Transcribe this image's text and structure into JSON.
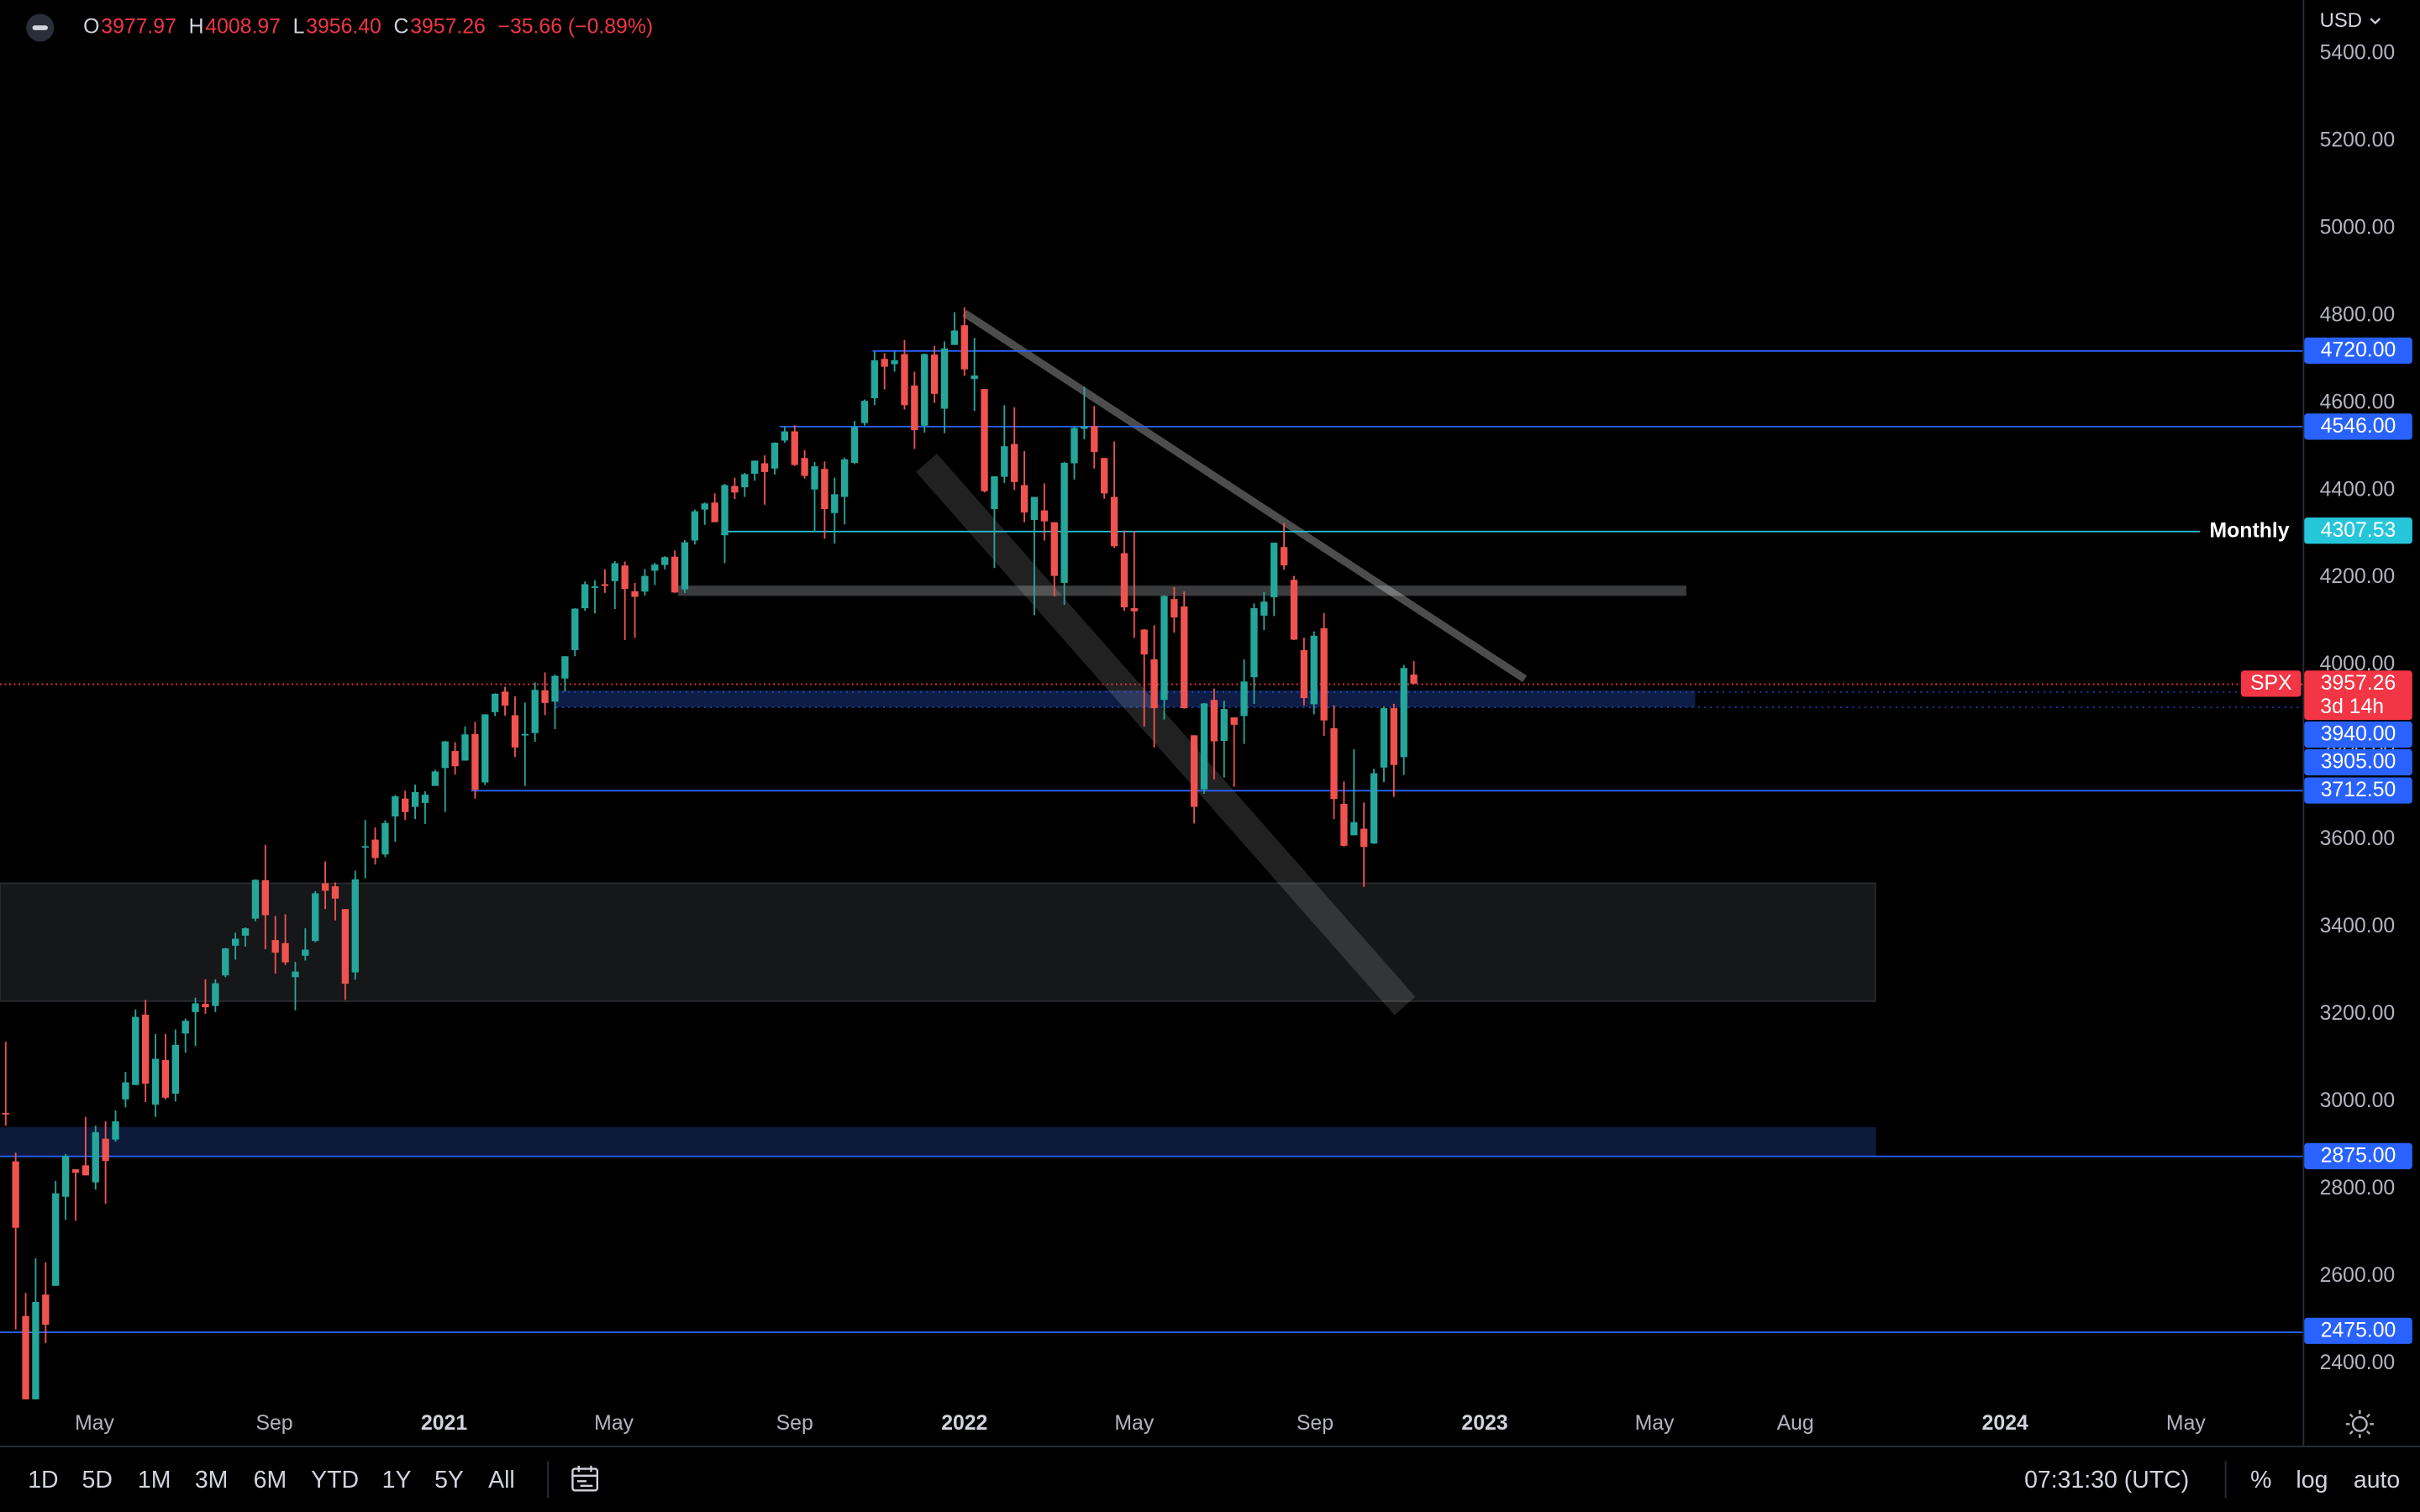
{
  "header": {
    "ohlc": [
      {
        "label": "O",
        "value": "3977.97"
      },
      {
        "label": "H",
        "value": "4008.97"
      },
      {
        "label": "L",
        "value": "3956.40"
      },
      {
        "label": "C",
        "value": "3957.26"
      }
    ],
    "change": "−35.66 (−0.89%)"
  },
  "currency": "USD",
  "toolbar": {
    "ranges": [
      "1D",
      "5D",
      "1M",
      "3M",
      "6M",
      "YTD",
      "1Y",
      "5Y",
      "All"
    ],
    "clock": "07:31:30 (UTC)",
    "options": [
      "%",
      "log",
      "auto"
    ]
  },
  "chart_data": {
    "type": "candlestick",
    "up_color": "#26a69a",
    "down_color": "#ef5350",
    "open": [
      2974,
      2863,
      2509,
      2291,
      2558,
      2578,
      2782,
      2845,
      2854,
      2815,
      2915,
      2913,
      3005,
      3038,
      3199,
      2993,
      3095,
      3018,
      3156,
      3205,
      3224,
      3219,
      3289,
      3357,
      3380,
      3419,
      3507,
      3370,
      3363,
      3285,
      3334,
      3368,
      3500,
      3493,
      3441,
      3296,
      3584,
      3600,
      3566,
      3653,
      3694,
      3675,
      3684,
      3723,
      3764,
      3803,
      3781,
      3842,
      3731,
      3892,
      3939,
      3885,
      3842,
      3844,
      3942,
      3916,
      3969,
      4034,
      4130,
      4179,
      4185,
      4192,
      4228,
      4169,
      4168,
      4216,
      4229,
      4248,
      4173,
      4285,
      4356,
      4372,
      4297,
      4410,
      4407,
      4438,
      4462,
      4450,
      4514,
      4535,
      4474,
      4402,
      4449,
      4348,
      4385,
      4463,
      4554,
      4611,
      4701,
      4689,
      4712,
      4640,
      4548,
      4711,
      4587,
      4733,
      4778,
      4655,
      4632,
      4357,
      4431,
      4506,
      4412,
      4332,
      4354,
      4327,
      4188,
      4462,
      4541,
      4547,
      4474,
      4385,
      4256,
      4130,
      4081,
      4013,
      3920,
      4151,
      4134,
      3839,
      3715,
      3920,
      3826,
      3880,
      3883,
      3972,
      4113,
      4155,
      4270,
      4195,
      4034,
      3910,
      4084,
      3855,
      3682,
      3610,
      3625,
      3591,
      3765,
      3901,
      3789,
      3977.97
    ],
    "high": [
      3137,
      2883,
      2562,
      2641,
      2632,
      2818,
      2880,
      2845,
      2965,
      2945,
      2955,
      2980,
      3068,
      3211,
      3233,
      3155,
      3155,
      3165,
      3190,
      3238,
      3280,
      3280,
      3352,
      3387,
      3399,
      3509,
      3588,
      3425,
      3429,
      3320,
      3397,
      3482,
      3550,
      3502,
      3441,
      3529,
      3645,
      3628,
      3644,
      3702,
      3712,
      3726,
      3711,
      3760,
      3826,
      3823,
      3859,
      3870,
      3887,
      3935,
      3950,
      3928,
      3914,
      3960,
      3983,
      3978,
      4020,
      4130,
      4191,
      4194,
      4219,
      4238,
      4237,
      4188,
      4220,
      4234,
      4249,
      4262,
      4286,
      4356,
      4372,
      4393,
      4415,
      4429,
      4440,
      4468,
      4480,
      4510,
      4545,
      4549,
      4492,
      4465,
      4466,
      4429,
      4475,
      4559,
      4608,
      4718,
      4714,
      4718,
      4744,
      4672,
      4713,
      4731,
      4741,
      4808,
      4819,
      4749,
      4632,
      4432,
      4595,
      4590,
      4490,
      4385,
      4416,
      4327,
      4465,
      4546,
      4637,
      4593,
      4474,
      4512,
      4308,
      4307,
      4082,
      4091,
      4160,
      4178,
      4168,
      3839,
      3913,
      3946,
      3918,
      3880,
      4013,
      4141,
      4167,
      4280,
      4325,
      4204,
      4062,
      4077,
      4119,
      3908,
      3733,
      3807,
      3685,
      3762,
      3905,
      3911,
      4000,
      4008.97
    ],
    "low": [
      2945,
      2478,
      2281,
      2192,
      2447,
      2578,
      2729,
      2727,
      2831,
      2798,
      2766,
      2908,
      2987,
      3038,
      2999,
      2965,
      3005,
      3000,
      3112,
      3127,
      3201,
      3205,
      3285,
      3325,
      3355,
      3413,
      3349,
      3293,
      3313,
      3209,
      3323,
      3365,
      3441,
      3415,
      3233,
      3279,
      3511,
      3543,
      3560,
      3595,
      3645,
      3647,
      3636,
      3723,
      3663,
      3749,
      3781,
      3694,
      3725,
      3883,
      3884,
      3789,
      3723,
      3824,
      3885,
      3853,
      3939,
      4020,
      4124,
      4118,
      4165,
      4128,
      4057,
      4062,
      4159,
      4183,
      4219,
      4165,
      4165,
      4276,
      4321,
      4328,
      4233,
      4380,
      4385,
      4422,
      4367,
      4436,
      4509,
      4456,
      4427,
      4305,
      4289,
      4278,
      4322,
      4460,
      4548,
      4595,
      4631,
      4672,
      4585,
      4495,
      4532,
      4600,
      4531,
      4733,
      4662,
      4582,
      4395,
      4222,
      4417,
      4401,
      4327,
      4114,
      4285,
      4157,
      4138,
      4425,
      4517,
      4450,
      4381,
      4268,
      4124,
      4062,
      3859,
      3811,
      3875,
      4074,
      3900,
      3637,
      3705,
      3738,
      3742,
      3721,
      3819,
      3911,
      4080,
      4112,
      4218,
      4057,
      3907,
      3887,
      3838,
      3647,
      3584,
      3610,
      3492,
      3590,
      3732,
      3698,
      3748,
      3956.4
    ],
    "close": [
      2972,
      2711,
      2305,
      2541,
      2489,
      2790,
      2875,
      2837,
      2831,
      2930,
      2864,
      2955,
      3044,
      3194,
      3041,
      3098,
      3009,
      3130,
      3185,
      3225,
      3216,
      3271,
      3351,
      3373,
      3397,
      3508,
      3427,
      3341,
      3319,
      3298,
      3348,
      3477,
      3483,
      3465,
      3270,
      3509,
      3585,
      3558,
      3638,
      3699,
      3663,
      3709,
      3703,
      3756,
      3825,
      3768,
      3841,
      3714,
      3887,
      3934,
      3907,
      3811,
      3842,
      3943,
      3913,
      3975,
      4020,
      4129,
      4185,
      4180,
      4181,
      4233,
      4174,
      4156,
      4204,
      4230,
      4247,
      4166,
      4281,
      4352,
      4370,
      4327,
      4412,
      4395,
      4437,
      4468,
      4442,
      4509,
      4535,
      4458,
      4433,
      4455,
      4357,
      4391,
      4471,
      4545,
      4605,
      4698,
      4683,
      4698,
      4595,
      4538,
      4712,
      4621,
      4725,
      4766,
      4677,
      4663,
      4398,
      4432,
      4501,
      4419,
      4349,
      4385,
      4329,
      4204,
      4463,
      4543,
      4546,
      4488,
      4393,
      4272,
      4132,
      4123,
      4024,
      3901,
      4158,
      4109,
      3901,
      3675,
      3912,
      3825,
      3899,
      3863,
      3962,
      4130,
      4145,
      4280,
      4228,
      4058,
      3924,
      4067,
      3873,
      3693,
      3586,
      3640,
      3583,
      3752,
      3901,
      3771,
      3993,
      3957.26
    ],
    "xlim": [
      -0.57,
      230
    ],
    "ylim": [
      2318,
      5523
    ],
    "grid": false,
    "log_scale": false,
    "xticks": [
      {
        "value": 8.9,
        "label": "May"
      },
      {
        "value": 26.9,
        "label": "Sep"
      },
      {
        "value": 43.9,
        "label": "2021",
        "bold": true
      },
      {
        "value": 60.9,
        "label": "May"
      },
      {
        "value": 79.0,
        "label": "Sep"
      },
      {
        "value": 96.0,
        "label": "2022",
        "bold": true
      },
      {
        "value": 113.0,
        "label": "May"
      },
      {
        "value": 131.1,
        "label": "Sep"
      },
      {
        "value": 148.1,
        "label": "2023",
        "bold": true
      },
      {
        "value": 165.1,
        "label": "May"
      },
      {
        "value": 179.2,
        "label": "Aug"
      },
      {
        "value": 200.2,
        "label": "2024",
        "bold": true
      },
      {
        "value": 218.3,
        "label": "May"
      }
    ],
    "yticks": [
      {
        "value": 2400,
        "label": "2400.00"
      },
      {
        "value": 2600,
        "label": "2600.00"
      },
      {
        "value": 2800,
        "label": "2800.00"
      },
      {
        "value": 3000,
        "label": "3000.00"
      },
      {
        "value": 3200,
        "label": "3200.00"
      },
      {
        "value": 3400,
        "label": "3400.00"
      },
      {
        "value": 3600,
        "label": "3600.00"
      },
      {
        "value": 3800,
        "label": "3800.00"
      },
      {
        "value": 4000,
        "label": "4000.00"
      },
      {
        "value": 4200,
        "label": "4200.00"
      },
      {
        "value": 4400,
        "label": "4400.00"
      },
      {
        "value": 4600,
        "label": "4600.00"
      },
      {
        "value": 4800,
        "label": "4800.00"
      },
      {
        "value": 5000,
        "label": "5000.00"
      },
      {
        "value": 5200,
        "label": "5200.00"
      },
      {
        "value": 5400,
        "label": "5400.00"
      }
    ],
    "zones": [
      {
        "x": [
          -0.57,
          187.2
        ],
        "y": [
          3230,
          3500
        ],
        "color": "#161719",
        "border": "#2a2b2e"
      },
      {
        "x": [
          -0.57,
          187.2
        ],
        "y": [
          2875,
          2940
        ],
        "color": "#0d1a3a",
        "border": "#0d1a3a"
      },
      {
        "x": [
          55.1,
          169.1
        ],
        "y": [
          3905,
          3940
        ],
        "color": "#0e1d45",
        "border": "#0e1d45"
      },
      {
        "x": [
          67.4,
          168.2
        ],
        "y": [
          4160,
          4180
        ],
        "color": "#3a3b3d",
        "border": "#3a3b3d"
      }
    ],
    "trendlines": [
      {
        "kind": "channel",
        "x": [
          92.2,
          140.1
        ],
        "y": [
          4463,
          3219
        ],
        "color": "rgba(255,255,255,0.13)"
      },
      {
        "kind": "line",
        "x": [
          96.0,
          152.1
        ],
        "y": [
          4806,
          3968
        ],
        "color": "rgba(255,255,255,0.3)"
      }
    ],
    "levels": [
      {
        "value": 4720,
        "label": "4720.00",
        "x": [
          86.8,
          230
        ],
        "color": "#2962ff"
      },
      {
        "value": 4546,
        "label": "4546.00",
        "x": [
          77.5,
          230
        ],
        "color": "#2962ff"
      },
      {
        "value": 4307.53,
        "label": "4307.53",
        "name": "Monthly",
        "x": [
          72.1,
          219.7
        ],
        "color": "#26c6da"
      },
      {
        "value": 3940,
        "label": "3940.00",
        "x": [
          55.1,
          230
        ],
        "color": "#2962ff",
        "dotted": true
      },
      {
        "value": 3905,
        "label": "3905.00",
        "x": [
          55.1,
          230
        ],
        "color": "#2962ff",
        "dotted": true
      },
      {
        "value": 3712.5,
        "label": "3712.50",
        "x": [
          46.6,
          230
        ],
        "color": "#2962ff"
      },
      {
        "value": 2875,
        "label": "2875.00",
        "x": [
          -0.57,
          230
        ],
        "color": "#2962ff"
      },
      {
        "value": 2475,
        "label": "2475.00",
        "x": [
          -0.57,
          230
        ],
        "color": "#2962ff"
      }
    ],
    "last_price": {
      "value": 3957.26,
      "label": "3957.26",
      "symbol": "SPX",
      "countdown": "3d 14h",
      "color": "#f23645"
    }
  }
}
